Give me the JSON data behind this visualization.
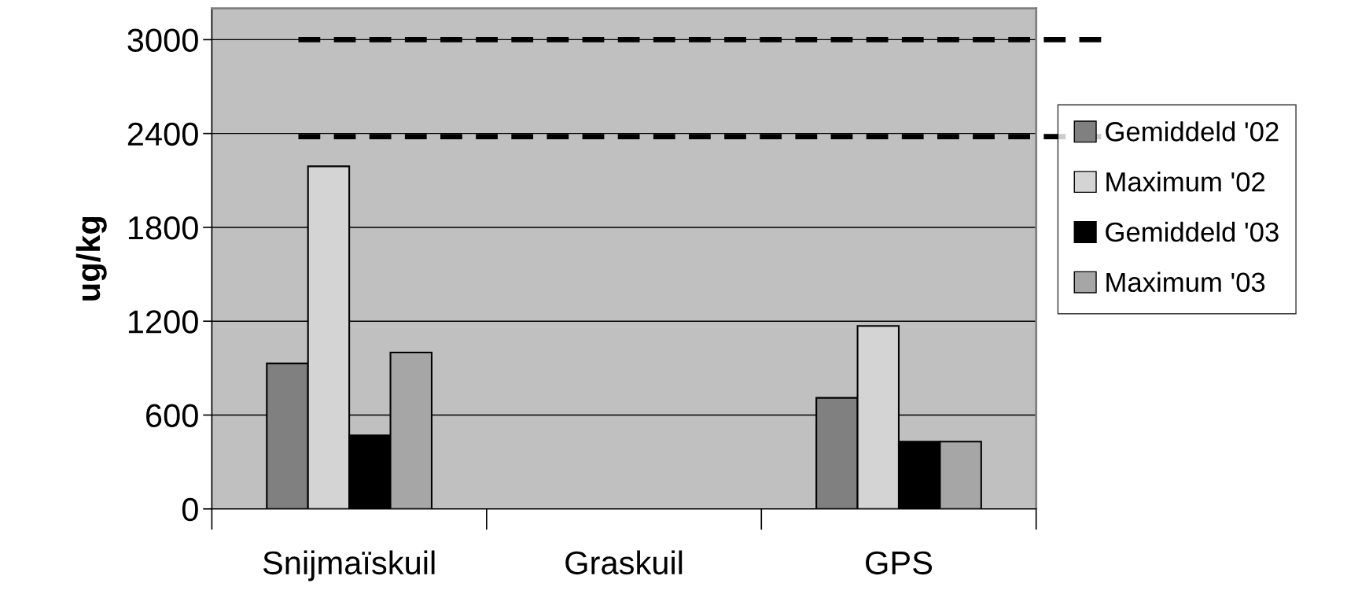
{
  "chart_data": {
    "type": "bar",
    "ylabel": "ug/kg",
    "categories": [
      "Snijmaïskuil",
      "Graskuil",
      "GPS"
    ],
    "series": [
      {
        "name": "Gemiddeld '02",
        "color": "#808080",
        "values": [
          930,
          null,
          710
        ]
      },
      {
        "name": "Maximum '02",
        "color": "#d4d4d4",
        "values": [
          2190,
          null,
          1170
        ]
      },
      {
        "name": "Gemiddeld '03",
        "color": "#000000",
        "values": [
          470,
          null,
          430
        ]
      },
      {
        "name": "Maximum '03",
        "color": "#a6a6a6",
        "values": [
          1000,
          null,
          430
        ]
      }
    ],
    "ylim": [
      0,
      3200
    ],
    "yticks": [
      0,
      600,
      1200,
      1800,
      2400,
      3000
    ],
    "ref_lines": [
      {
        "axis": "y",
        "value": 3000,
        "color": "#000000",
        "line_style": "dashed"
      },
      {
        "axis": "y",
        "value": 2380,
        "color": "#000000",
        "line_style": "dashed"
      }
    ],
    "grid": "y",
    "legend": "right"
  }
}
